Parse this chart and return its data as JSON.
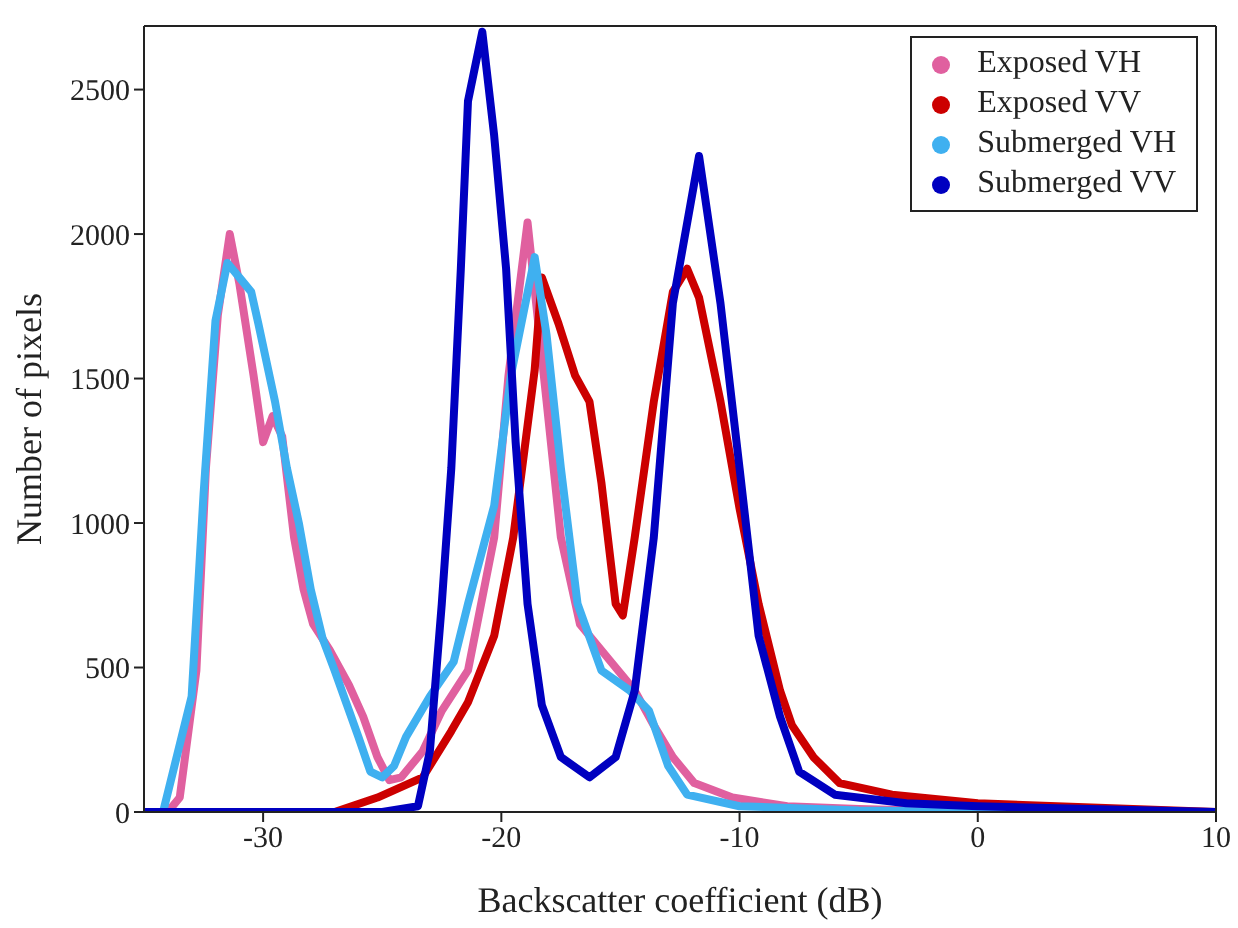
{
  "chart_data": {
    "type": "line",
    "xlabel": "Backscatter coefficient (dB)",
    "ylabel": "Number of pixels",
    "xlim": [
      -35,
      10
    ],
    "xticks": [
      -30,
      -20,
      -10,
      0,
      10
    ],
    "ylim": [
      0,
      2720
    ],
    "yticks": [
      0,
      500,
      1000,
      1500,
      2000,
      2500
    ],
    "grid": false,
    "legend": "top right",
    "marker": "none",
    "line_style": "solid",
    "series": [
      {
        "name": "Exposed VH",
        "color": "#e0609f",
        "x": [
          -35,
          -34,
          -33.5,
          -32.8,
          -32.4,
          -31.9,
          -31.4,
          -31,
          -30.4,
          -30,
          -29.6,
          -29.2,
          -28.7,
          -28.3,
          -27.9,
          -27.2,
          -26.4,
          -25.8,
          -25.2,
          -24.7,
          -24.2,
          -23.3,
          -22.5,
          -21.4,
          -20.3,
          -19.7,
          -18.9,
          -18.1,
          -17.5,
          -16.7,
          -15.6,
          -14.4,
          -13.6,
          -12.8,
          -11.9,
          -10.3,
          -8,
          -5,
          0,
          10
        ],
        "values": [
          0,
          0,
          50,
          490,
          1190,
          1720,
          2000,
          1830,
          1510,
          1280,
          1370,
          1300,
          950,
          770,
          650,
          560,
          440,
          330,
          190,
          110,
          120,
          210,
          350,
          490,
          950,
          1510,
          2040,
          1420,
          950,
          650,
          540,
          420,
          300,
          190,
          100,
          50,
          20,
          10,
          0,
          0
        ]
      },
      {
        "name": "Exposed VV",
        "color": "#cc0000",
        "x": [
          -35,
          -27,
          -25.2,
          -23.3,
          -22.1,
          -21.4,
          -20.3,
          -19.5,
          -18.6,
          -18.3,
          -17.6,
          -16.9,
          -16.3,
          -15.8,
          -15.2,
          -14.9,
          -14.4,
          -13.6,
          -12.8,
          -12.2,
          -11.7,
          -10.8,
          -10,
          -9.2,
          -8.3,
          -7.8,
          -6.9,
          -5.8,
          -3.6,
          0,
          10
        ],
        "values": [
          0,
          0,
          50,
          120,
          280,
          380,
          610,
          950,
          1530,
          1850,
          1690,
          1510,
          1420,
          1140,
          720,
          680,
          950,
          1420,
          1800,
          1880,
          1780,
          1420,
          1050,
          720,
          420,
          300,
          190,
          100,
          60,
          30,
          0
        ]
      },
      {
        "name": "Submerged VH",
        "color": "#3fb0f0",
        "x": [
          -35,
          -34.2,
          -33,
          -32.5,
          -32,
          -31.5,
          -31,
          -30.5,
          -30.2,
          -29.5,
          -29,
          -28.5,
          -28,
          -27.5,
          -27,
          -26.5,
          -26,
          -25.5,
          -25,
          -24.5,
          -24,
          -23,
          -22,
          -21.4,
          -20.3,
          -19.6,
          -18.6,
          -18.1,
          -17.5,
          -16.8,
          -15.8,
          -14.6,
          -13.8,
          -13,
          -12.2,
          -10,
          -5,
          0,
          10
        ],
        "values": [
          0,
          0,
          400,
          1100,
          1700,
          1900,
          1850,
          1800,
          1690,
          1420,
          1190,
          1000,
          770,
          600,
          490,
          375,
          260,
          140,
          120,
          160,
          260,
          400,
          520,
          720,
          1060,
          1510,
          1920,
          1650,
          1190,
          720,
          490,
          420,
          350,
          160,
          60,
          20,
          5,
          0,
          0
        ]
      },
      {
        "name": "Submerged VV",
        "color": "#0000c0",
        "x": [
          -35,
          -25,
          -23.5,
          -23,
          -22.5,
          -22.1,
          -21.7,
          -21.4,
          -20.8,
          -20.3,
          -19.8,
          -19.4,
          -18.9,
          -18.3,
          -17.5,
          -16.3,
          -15.2,
          -14.4,
          -13.6,
          -12.8,
          -11.7,
          -10.8,
          -10,
          -9.2,
          -8.3,
          -7.5,
          -6,
          -3,
          0,
          10
        ],
        "values": [
          0,
          0,
          20,
          210,
          720,
          1190,
          1880,
          2460,
          2700,
          2340,
          1880,
          1280,
          720,
          370,
          190,
          120,
          190,
          420,
          950,
          1760,
          2270,
          1760,
          1190,
          610,
          330,
          140,
          60,
          30,
          20,
          0
        ]
      }
    ]
  }
}
